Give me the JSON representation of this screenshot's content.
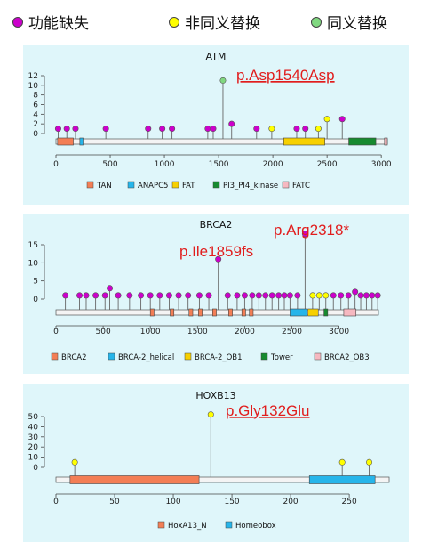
{
  "legend": {
    "items": [
      {
        "label": "功能缺失",
        "color": "#cc00cc"
      },
      {
        "label": "非同义替换",
        "color": "#ffff00"
      },
      {
        "label": "同义替换",
        "color": "#80d880"
      }
    ]
  },
  "chart_data": [
    {
      "type": "lollipop",
      "title": "ATM",
      "xlim": [
        0,
        3056
      ],
      "ylim": [
        0,
        12
      ],
      "xticks": [
        0,
        500,
        1000,
        1500,
        2000,
        2500,
        3000
      ],
      "yticks": [
        0,
        2,
        4,
        6,
        8,
        10,
        12
      ],
      "annotation": {
        "text": "p.Asp1540Asp",
        "underline": true
      },
      "mutations": [
        {
          "x": 20,
          "y": 1,
          "cls": "lof"
        },
        {
          "x": 100,
          "y": 1,
          "cls": "lof"
        },
        {
          "x": 180,
          "y": 1,
          "cls": "lof"
        },
        {
          "x": 460,
          "y": 1,
          "cls": "lof"
        },
        {
          "x": 850,
          "y": 1,
          "cls": "lof"
        },
        {
          "x": 980,
          "y": 1,
          "cls": "lof"
        },
        {
          "x": 1070,
          "y": 1,
          "cls": "lof"
        },
        {
          "x": 1400,
          "y": 1,
          "cls": "lof"
        },
        {
          "x": 1450,
          "y": 1,
          "cls": "lof"
        },
        {
          "x": 1540,
          "y": 11,
          "cls": "syn"
        },
        {
          "x": 1620,
          "y": 2,
          "cls": "lof"
        },
        {
          "x": 1850,
          "y": 1,
          "cls": "lof"
        },
        {
          "x": 1990,
          "y": 1,
          "cls": "mis"
        },
        {
          "x": 2220,
          "y": 1,
          "cls": "lof"
        },
        {
          "x": 2300,
          "y": 1,
          "cls": "lof"
        },
        {
          "x": 2420,
          "y": 1,
          "cls": "mis"
        },
        {
          "x": 2500,
          "y": 3,
          "cls": "mis"
        },
        {
          "x": 2640,
          "y": 3,
          "cls": "lof"
        }
      ],
      "domains": [
        {
          "name": "TAN",
          "start": 15,
          "end": 160,
          "color": "#f37e55"
        },
        {
          "name": "ANAPC5",
          "start": 220,
          "end": 250,
          "color": "#26b5ea"
        },
        {
          "name": "FAT",
          "start": 2100,
          "end": 2480,
          "color": "#f7d000"
        },
        {
          "name": "PI3_PI4_kinase",
          "start": 2700,
          "end": 2950,
          "color": "#178a2f"
        },
        {
          "name": "FATC",
          "start": 3030,
          "end": 3056,
          "color": "#f6b8c0"
        }
      ]
    },
    {
      "type": "lollipop",
      "title": "BRCA2",
      "xlim": [
        0,
        3418
      ],
      "ylim": [
        0,
        15
      ],
      "xticks": [
        0,
        500,
        1000,
        1500,
        2000,
        2500,
        3000
      ],
      "yticks": [
        0,
        5,
        10,
        15
      ],
      "annotations": [
        {
          "text": "p.Arg2318*"
        },
        {
          "text": "p.Ile1859fs"
        }
      ],
      "mutations": [
        {
          "x": 100,
          "y": 1,
          "cls": "lof"
        },
        {
          "x": 250,
          "y": 1,
          "cls": "lof"
        },
        {
          "x": 320,
          "y": 1,
          "cls": "lof"
        },
        {
          "x": 420,
          "y": 1,
          "cls": "lof"
        },
        {
          "x": 520,
          "y": 1,
          "cls": "lof"
        },
        {
          "x": 570,
          "y": 3,
          "cls": "lof"
        },
        {
          "x": 660,
          "y": 1,
          "cls": "lof"
        },
        {
          "x": 780,
          "y": 1,
          "cls": "lof"
        },
        {
          "x": 900,
          "y": 1,
          "cls": "lof"
        },
        {
          "x": 1000,
          "y": 1,
          "cls": "lof"
        },
        {
          "x": 1100,
          "y": 1,
          "cls": "lof"
        },
        {
          "x": 1200,
          "y": 1,
          "cls": "lof"
        },
        {
          "x": 1300,
          "y": 1,
          "cls": "lof"
        },
        {
          "x": 1400,
          "y": 1,
          "cls": "lof"
        },
        {
          "x": 1520,
          "y": 1,
          "cls": "lof"
        },
        {
          "x": 1620,
          "y": 1,
          "cls": "lof"
        },
        {
          "x": 1720,
          "y": 11,
          "cls": "lof"
        },
        {
          "x": 1820,
          "y": 1,
          "cls": "lof"
        },
        {
          "x": 1920,
          "y": 1,
          "cls": "lof"
        },
        {
          "x": 2000,
          "y": 1,
          "cls": "lof"
        },
        {
          "x": 2080,
          "y": 1,
          "cls": "lof"
        },
        {
          "x": 2150,
          "y": 1,
          "cls": "lof"
        },
        {
          "x": 2220,
          "y": 1,
          "cls": "lof"
        },
        {
          "x": 2290,
          "y": 1,
          "cls": "lof"
        },
        {
          "x": 2360,
          "y": 1,
          "cls": "lof"
        },
        {
          "x": 2420,
          "y": 1,
          "cls": "lof"
        },
        {
          "x": 2480,
          "y": 1,
          "cls": "lof"
        },
        {
          "x": 2560,
          "y": 1,
          "cls": "lof"
        },
        {
          "x": 2640,
          "y": 18,
          "cls": "lof"
        },
        {
          "x": 2720,
          "y": 1,
          "cls": "mis"
        },
        {
          "x": 2790,
          "y": 1,
          "cls": "mis"
        },
        {
          "x": 2860,
          "y": 1,
          "cls": "mis"
        },
        {
          "x": 2940,
          "y": 1,
          "cls": "lof"
        },
        {
          "x": 3020,
          "y": 1,
          "cls": "lof"
        },
        {
          "x": 3100,
          "y": 1,
          "cls": "lof"
        },
        {
          "x": 3170,
          "y": 2,
          "cls": "lof"
        },
        {
          "x": 3230,
          "y": 1,
          "cls": "lof"
        },
        {
          "x": 3290,
          "y": 1,
          "cls": "lof"
        },
        {
          "x": 3350,
          "y": 1,
          "cls": "lof"
        },
        {
          "x": 3410,
          "y": 1,
          "cls": "lof"
        }
      ],
      "domains": [
        {
          "name": "BRCA2",
          "start": 1000,
          "end": 1040,
          "color": "#f37e55"
        },
        {
          "name": "BRCA2",
          "start": 1210,
          "end": 1250,
          "color": "#f37e55"
        },
        {
          "name": "BRCA2",
          "start": 1410,
          "end": 1450,
          "color": "#f37e55"
        },
        {
          "name": "BRCA2",
          "start": 1510,
          "end": 1550,
          "color": "#f37e55"
        },
        {
          "name": "BRCA2",
          "start": 1660,
          "end": 1700,
          "color": "#f37e55"
        },
        {
          "name": "BRCA2",
          "start": 1830,
          "end": 1870,
          "color": "#f37e55"
        },
        {
          "name": "BRCA2",
          "start": 1970,
          "end": 2010,
          "color": "#f37e55"
        },
        {
          "name": "BRCA2",
          "start": 2050,
          "end": 2090,
          "color": "#f37e55"
        },
        {
          "name": "BRCA-2_helical",
          "start": 2480,
          "end": 2660,
          "color": "#26b5ea"
        },
        {
          "name": "BRCA-2_OB1",
          "start": 2670,
          "end": 2780,
          "color": "#f7d000"
        },
        {
          "name": "Tower",
          "start": 2840,
          "end": 2880,
          "color": "#178a2f"
        },
        {
          "name": "BRCA2_OB3",
          "start": 3050,
          "end": 3180,
          "color": "#f6b8c0"
        }
      ]
    },
    {
      "type": "lollipop",
      "title": "HOXB13",
      "xlim": [
        0,
        284
      ],
      "ylim": [
        0,
        50
      ],
      "xticks": [
        0,
        50,
        100,
        150,
        200,
        250
      ],
      "yticks": [
        0,
        10,
        20,
        30,
        40,
        50
      ],
      "annotation": {
        "text": "p.Gly132Glu",
        "underline": true
      },
      "mutations": [
        {
          "x": 16,
          "y": 5,
          "cls": "mis"
        },
        {
          "x": 132,
          "y": 52,
          "cls": "mis"
        },
        {
          "x": 244,
          "y": 5,
          "cls": "mis"
        },
        {
          "x": 267,
          "y": 5,
          "cls": "mis"
        }
      ],
      "domains": [
        {
          "name": "HoxA13_N",
          "start": 12,
          "end": 122,
          "color": "#f37e55"
        },
        {
          "name": "Homeobox",
          "start": 216,
          "end": 272,
          "color": "#26b5ea"
        }
      ]
    }
  ]
}
